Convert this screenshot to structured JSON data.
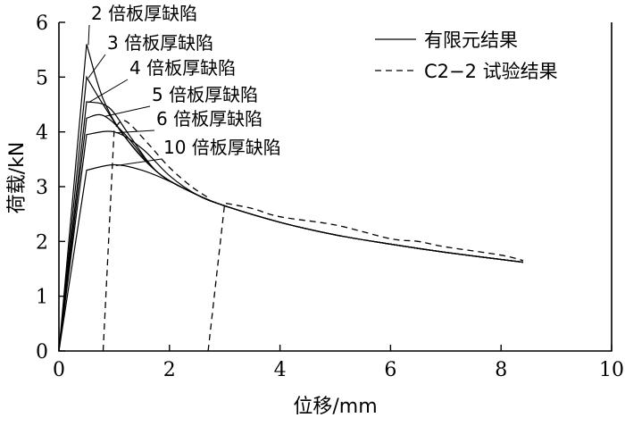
{
  "chart_data": {
    "type": "line",
    "xlabel": "位移/mm",
    "ylabel": "荷载/kN",
    "xlim": [
      0,
      10
    ],
    "ylim": [
      0,
      6
    ],
    "xticks": [
      "0",
      "2",
      "4",
      "6",
      "8",
      "10"
    ],
    "yticks": [
      "0",
      "1",
      "2",
      "3",
      "4",
      "5",
      "6"
    ],
    "grid": false,
    "legend_position": "top-right",
    "legend": [
      {
        "label": "有限元结果",
        "style": "solid"
      },
      {
        "label": "C2−2 试验结果",
        "style": "dashed"
      }
    ],
    "annotations": [
      {
        "text": "2 倍板厚缺陷",
        "series": 0
      },
      {
        "text": "3 倍板厚缺陷",
        "series": 1
      },
      {
        "text": "4 倍板厚缺陷",
        "series": 2
      },
      {
        "text": "5 倍板厚缺陷",
        "series": 3
      },
      {
        "text": "6 倍板厚缺陷",
        "series": 4
      },
      {
        "text": "10 倍板厚缺陷",
        "series": 5
      }
    ],
    "series": [
      {
        "style": "solid",
        "points": [
          [
            0,
            0
          ],
          [
            0.5,
            5.6
          ],
          [
            0.8,
            4.6
          ],
          [
            1.2,
            3.9
          ],
          [
            1.8,
            3.25
          ],
          [
            2.5,
            2.85
          ],
          [
            3,
            2.65
          ],
          [
            4,
            2.35
          ],
          [
            5,
            2.12
          ],
          [
            6,
            1.95
          ],
          [
            7,
            1.8
          ],
          [
            8.4,
            1.62
          ]
        ]
      },
      {
        "style": "solid",
        "points": [
          [
            0,
            0
          ],
          [
            0.5,
            5.0
          ],
          [
            0.8,
            4.5
          ],
          [
            1.2,
            3.9
          ],
          [
            1.8,
            3.25
          ],
          [
            2.5,
            2.85
          ],
          [
            3,
            2.65
          ],
          [
            4,
            2.35
          ],
          [
            5,
            2.12
          ],
          [
            6,
            1.95
          ],
          [
            7,
            1.8
          ],
          [
            8.4,
            1.62
          ]
        ]
      },
      {
        "style": "solid",
        "points": [
          [
            0,
            0
          ],
          [
            0.5,
            4.55
          ],
          [
            0.9,
            4.45
          ],
          [
            1.3,
            3.9
          ],
          [
            1.8,
            3.25
          ],
          [
            2.5,
            2.85
          ],
          [
            3,
            2.65
          ],
          [
            4,
            2.35
          ],
          [
            5,
            2.12
          ],
          [
            6,
            1.95
          ],
          [
            7,
            1.8
          ],
          [
            8.4,
            1.62
          ]
        ]
      },
      {
        "style": "solid",
        "points": [
          [
            0,
            0
          ],
          [
            0.5,
            4.25
          ],
          [
            0.8,
            4.3
          ],
          [
            1.2,
            3.95
          ],
          [
            1.8,
            3.25
          ],
          [
            2.5,
            2.85
          ],
          [
            3,
            2.65
          ],
          [
            4,
            2.35
          ],
          [
            5,
            2.12
          ],
          [
            6,
            1.95
          ],
          [
            7,
            1.8
          ],
          [
            8.4,
            1.62
          ]
        ]
      },
      {
        "style": "solid",
        "points": [
          [
            0,
            0
          ],
          [
            0.5,
            3.95
          ],
          [
            1.0,
            4.0
          ],
          [
            1.5,
            3.7
          ],
          [
            2,
            3.2
          ],
          [
            2.5,
            2.85
          ],
          [
            3,
            2.65
          ],
          [
            4,
            2.35
          ],
          [
            5,
            2.12
          ],
          [
            6,
            1.95
          ],
          [
            7,
            1.8
          ],
          [
            8.4,
            1.62
          ]
        ]
      },
      {
        "style": "solid",
        "points": [
          [
            0,
            0
          ],
          [
            0.5,
            3.3
          ],
          [
            1.0,
            3.4
          ],
          [
            1.5,
            3.3
          ],
          [
            2,
            3.1
          ],
          [
            2.5,
            2.85
          ],
          [
            3,
            2.65
          ],
          [
            4,
            2.35
          ],
          [
            5,
            2.12
          ],
          [
            6,
            1.95
          ],
          [
            7,
            1.8
          ],
          [
            8.4,
            1.62
          ]
        ]
      },
      {
        "style": "dashed",
        "points": [
          [
            0.8,
            0
          ],
          [
            1.0,
            4.05
          ],
          [
            1.2,
            4.2
          ],
          [
            1.6,
            3.8
          ],
          [
            2,
            3.35
          ],
          [
            2.4,
            3.0
          ],
          [
            2.7,
            2.8
          ]
        ]
      },
      {
        "style": "dashed",
        "points": [
          [
            2.7,
            0
          ],
          [
            3.0,
            2.7
          ],
          [
            3.5,
            2.6
          ],
          [
            4,
            2.45
          ],
          [
            5,
            2.3
          ],
          [
            6,
            2.05
          ],
          [
            6.5,
            2.0
          ],
          [
            7,
            1.9
          ],
          [
            8,
            1.75
          ],
          [
            8.4,
            1.65
          ]
        ]
      }
    ]
  }
}
